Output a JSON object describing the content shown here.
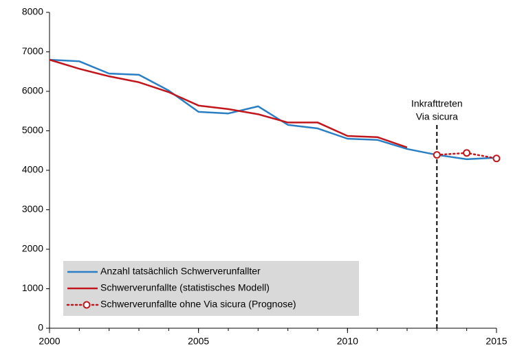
{
  "chart_data": {
    "type": "line",
    "x": [
      2000,
      2001,
      2002,
      2003,
      2004,
      2005,
      2006,
      2007,
      2008,
      2009,
      2010,
      2011,
      2012,
      2013,
      2014,
      2015
    ],
    "xlim": [
      2000,
      2015
    ],
    "xticks": [
      2000,
      2005,
      2010,
      2015
    ],
    "ylim": [
      0,
      8000
    ],
    "yticks": [
      0,
      1000,
      2000,
      3000,
      4000,
      5000,
      6000,
      7000,
      8000
    ],
    "grid": false,
    "legend": "lower left",
    "series": [
      {
        "name": "Anzahl tatsächlich Schwerverunfallter",
        "color": "#2a7fc4",
        "style": "solid",
        "markers": false,
        "values": [
          6800,
          6760,
          6450,
          6420,
          6020,
          5480,
          5440,
          5620,
          5150,
          5060,
          4800,
          4770,
          4540,
          4390,
          4280,
          4320
        ]
      },
      {
        "name": "Schwerverunfallte (statistisches Modell)",
        "color": "#c0161c",
        "style": "solid",
        "markers": false,
        "values": [
          6800,
          6570,
          6380,
          6230,
          5980,
          5640,
          5550,
          5420,
          5210,
          5210,
          4870,
          4840,
          4580,
          null,
          null,
          null
        ]
      },
      {
        "name": "Schwerverunfallte ohne Via sicura (Prognose)",
        "color": "#c0161c",
        "style": "dotted",
        "markers": true,
        "values": [
          null,
          null,
          null,
          null,
          null,
          null,
          null,
          null,
          null,
          null,
          null,
          null,
          null,
          4390,
          4440,
          4300
        ]
      }
    ],
    "annotation": {
      "x": 2013,
      "text": [
        "Inkrafttreten",
        "Via sicura"
      ]
    }
  }
}
